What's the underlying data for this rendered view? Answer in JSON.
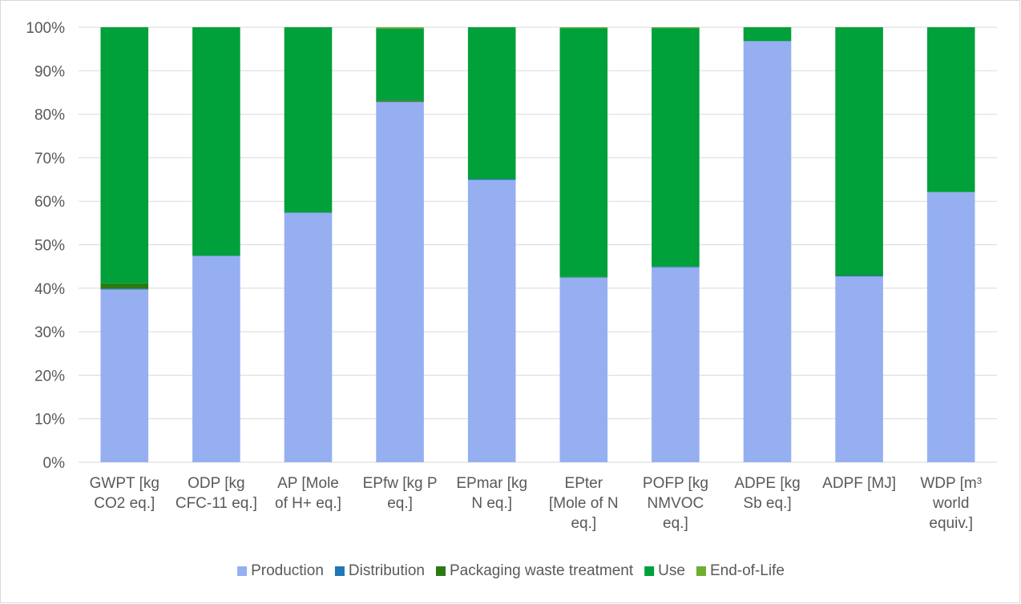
{
  "chart_data": {
    "type": "bar",
    "stacked": "percent",
    "title": "",
    "xlabel": "",
    "ylabel": "",
    "ylim": [
      0,
      100
    ],
    "y_ticks": [
      "0%",
      "10%",
      "20%",
      "30%",
      "40%",
      "50%",
      "60%",
      "70%",
      "80%",
      "90%",
      "100%"
    ],
    "grid": true,
    "legend_position": "bottom",
    "categories": [
      [
        "GWPT [kg",
        "CO2 eq.]"
      ],
      [
        "ODP [kg",
        "CFC-11 eq.]"
      ],
      [
        "AP [Mole",
        "of H+ eq.]"
      ],
      [
        "EPfw [kg P",
        "eq.]"
      ],
      [
        "EPmar [kg",
        "N eq.]"
      ],
      [
        "EPter",
        "[Mole of N",
        "eq.]"
      ],
      [
        "POFP [kg",
        "NMVOC",
        "eq.]"
      ],
      [
        "ADPE [kg",
        "Sb eq.]"
      ],
      [
        "ADPF [MJ]"
      ],
      [
        "WDP [m³",
        "world",
        "equiv.]"
      ]
    ],
    "series": [
      {
        "name": "Production",
        "color": "#95aff1",
        "values": [
          39.7,
          47.4,
          57.3,
          82.8,
          64.9,
          42.4,
          44.8,
          96.8,
          42.7,
          62.1
        ]
      },
      {
        "name": "Distribution",
        "color": "#1f77b4",
        "values": [
          0.2,
          0.1,
          0.1,
          0.1,
          0.2,
          0.1,
          0.2,
          0.0,
          0.2,
          0.0
        ]
      },
      {
        "name": "Packaging waste treatment",
        "color": "#2a7a12",
        "values": [
          1.2,
          0.0,
          0.0,
          0.3,
          0.0,
          0.1,
          0.0,
          0.0,
          0.1,
          0.0
        ]
      },
      {
        "name": "Use",
        "color": "#00a03a",
        "values": [
          58.9,
          52.5,
          42.6,
          16.5,
          34.9,
          57.2,
          54.8,
          3.2,
          57.0,
          37.9
        ]
      },
      {
        "name": "End-of-Life",
        "color": "#6fad2f",
        "values": [
          0.0,
          0.0,
          0.0,
          0.3,
          0.0,
          0.2,
          0.2,
          0.0,
          0.0,
          0.0
        ]
      }
    ]
  }
}
